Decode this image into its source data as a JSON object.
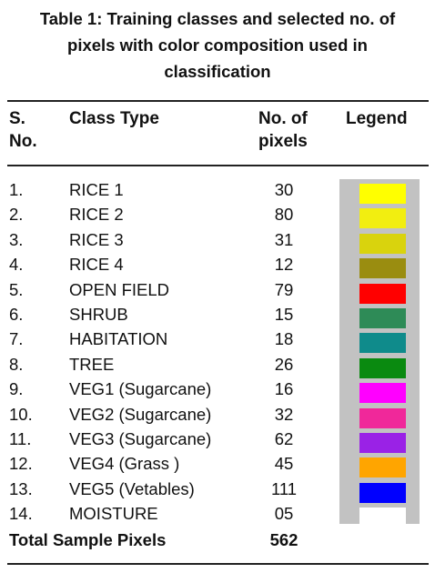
{
  "caption": {
    "line1": "Table 1: Training classes and selected no. of",
    "line2": "pixels with color composition used in",
    "line3": "classification"
  },
  "headers": {
    "sno_line1": "S.",
    "sno_line2": "No.",
    "class_type": "Class Type",
    "pixels_line1": "No. of",
    "pixels_line2": "pixels",
    "legend": "Legend"
  },
  "rows": [
    {
      "sno": "1.",
      "class_type": "RICE 1",
      "pixels": "30",
      "color": "#ffff00"
    },
    {
      "sno": "2.",
      "class_type": "RICE 2",
      "pixels": "80",
      "color": "#f2ee10"
    },
    {
      "sno": "3.",
      "class_type": "RICE 3",
      "pixels": "31",
      "color": "#d9d30d"
    },
    {
      "sno": "4.",
      "class_type": "RICE 4",
      "pixels": "12",
      "color": "#9a8d10"
    },
    {
      "sno": "5.",
      "class_type": "OPEN FIELD",
      "pixels": "79",
      "color": "#ff0000"
    },
    {
      "sno": "6.",
      "class_type": "SHRUB",
      "pixels": "15",
      "color": "#2e8b57"
    },
    {
      "sno": "7.",
      "class_type": "HABITATION",
      "pixels": "18",
      "color": "#0f8b8b"
    },
    {
      "sno": "8.",
      "class_type": "TREE",
      "pixels": "26",
      "color": "#0a8a10"
    },
    {
      "sno": "9.",
      "class_type": "VEG1 (Sugarcane)",
      "pixels": "16",
      "color": "#ff00ff"
    },
    {
      "sno": "10.",
      "class_type": "VEG2 (Sugarcane)",
      "pixels": "32",
      "color": "#f0289a"
    },
    {
      "sno": "11.",
      "class_type": "VEG3 (Sugarcane)",
      "pixels": "62",
      "color": "#9a22e6"
    },
    {
      "sno": "12.",
      "class_type": "VEG4 (Grass )",
      "pixels": "45",
      "color": "#ffa500"
    },
    {
      "sno": "13.",
      "class_type": "VEG5 (Vetables)",
      "pixels": "111",
      "color": "#0000ff"
    },
    {
      "sno": "14.",
      "class_type": "MOISTURE",
      "pixels": "05",
      "color": "#ffffff"
    }
  ],
  "total": {
    "label": "Total Sample Pixels",
    "value": "562"
  }
}
